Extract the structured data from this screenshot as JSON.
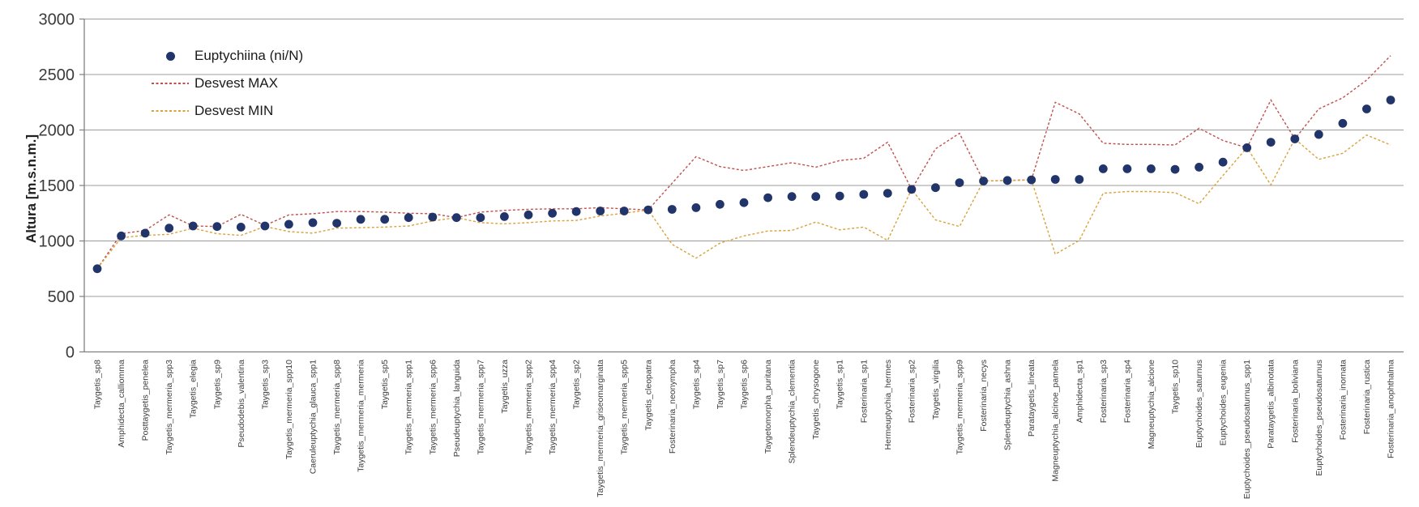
{
  "chart_data": {
    "type": "scatter",
    "title": "",
    "xlabel": "",
    "ylabel": "Altura [m.s.n.m.]",
    "ylim": [
      0,
      3000
    ],
    "yticks": [
      0,
      500,
      1000,
      1500,
      2000,
      2500,
      3000
    ],
    "grid": "horizontal-gridlines-every-500",
    "legend_position": "inside-top-left",
    "colors": {
      "gridline": "#9c9c9c",
      "axis": "#7f7f7f",
      "tick_text": "#3b3b3b"
    },
    "categories": [
      "Taygetis_sp8",
      "Amphidecta_calliomma",
      "Posttaygetis_penelea",
      "Taygetis_mermeria_spp3",
      "Taygetis_elegia",
      "Taygetis_sp9",
      "Pseudodebis_valentina",
      "Taygetis_sp3",
      "Taygetis_mermeria_spp10",
      "Caeruleuptychia_glauca_spp1",
      "Taygetis_mermeria_spp8",
      "Taygetis_mermeria_mermeria",
      "Taygetis_sp5",
      "Taygetis_mermeria_spp1",
      "Taygetis_mermeria_spp6",
      "Pseudeuptychia_languida",
      "Taygetis_mermeria_spp7",
      "Taygetis_uzza",
      "Taygetis_mermeria_spp2",
      "Taygetis_mermeria_spp4",
      "Taygetis_sp2",
      "Taygetis_mermeria_griseomarginata",
      "Taygetis_mermeria_spp5",
      "Taygetis_cleopatra",
      "Fosterinaria_neonympha",
      "Taygetis_sp4",
      "Taygetis_sp7",
      "Taygetis_sp6",
      "Taygetomorpha_puritana",
      "Splendeuptychia_clementia",
      "Taygetis_chrysogone",
      "Taygetis_sp1",
      "Fosterinaria_sp1",
      "Hermeuptychia_hermes",
      "Fosterinaria_sp2",
      "Taygetis_virgilia",
      "Taygetis_mermeria_spp9",
      "Fosterinaria_necys",
      "Splendeuptychia_ashna",
      "Parataygetis_lineata",
      "Magneuptychia_alcinoe_pamela",
      "Amphidecta_sp1",
      "Fosterinaria_sp3",
      "Fosterinaria_sp4",
      "Magneuptychia_alcione",
      "Taygetis_sp10",
      "Euptychoides_saturnus",
      "Euptychoides_eugenia",
      "Euptychoides_pseudosaturnus_spp1",
      "Parataygetis_albinotata",
      "Fosterinaria_boliviana",
      "Euptychoides_pseudosaturnus",
      "Fosterinaria_inornata",
      "Fosterinaria_rustica",
      "Fosterinaria_anophthalma"
    ],
    "series": [
      {
        "name": "Euptychiina (ni/N)",
        "style": "points",
        "marker": "circle",
        "color": "#22356b",
        "values": [
          750,
          1045,
          1070,
          1115,
          1135,
          1130,
          1125,
          1135,
          1150,
          1165,
          1160,
          1195,
          1195,
          1210,
          1215,
          1210,
          1210,
          1220,
          1235,
          1250,
          1265,
          1270,
          1270,
          1280,
          1285,
          1300,
          1330,
          1345,
          1390,
          1400,
          1400,
          1405,
          1420,
          1430,
          1465,
          1480,
          1525,
          1540,
          1545,
          1550,
          1555,
          1555,
          1650,
          1650,
          1650,
          1645,
          1665,
          1710,
          1840,
          1890,
          1920,
          1960,
          2060,
          2190,
          2270
        ]
      },
      {
        "name": "Desvest MAX",
        "style": "dashed-line",
        "color": "#c0504d",
        "values": [
          750,
          1065,
          1095,
          1235,
          1135,
          1130,
          1240,
          1140,
          1235,
          1245,
          1265,
          1265,
          1260,
          1250,
          1245,
          1210,
          1260,
          1275,
          1285,
          1290,
          1290,
          1300,
          1290,
          1280,
          1520,
          1760,
          1670,
          1635,
          1670,
          1705,
          1665,
          1725,
          1745,
          1890,
          1465,
          1830,
          1970,
          1540,
          1545,
          1550,
          2250,
          2145,
          1880,
          1870,
          1870,
          1865,
          2015,
          1905,
          1840,
          2270,
          1920,
          2190,
          2290,
          2450,
          2670
        ]
      },
      {
        "name": "Desvest MIN",
        "style": "dashed-line",
        "color": "#d9a23c",
        "values": [
          750,
          1030,
          1050,
          1060,
          1115,
          1065,
          1050,
          1130,
          1085,
          1070,
          1115,
          1120,
          1125,
          1135,
          1180,
          1210,
          1165,
          1155,
          1165,
          1180,
          1185,
          1225,
          1250,
          1280,
          970,
          845,
          980,
          1045,
          1090,
          1095,
          1170,
          1100,
          1125,
          1005,
          1465,
          1190,
          1130,
          1540,
          1545,
          1550,
          880,
          1005,
          1430,
          1445,
          1445,
          1435,
          1335,
          1590,
          1840,
          1505,
          1920,
          1735,
          1790,
          1955,
          1865
        ]
      }
    ]
  }
}
